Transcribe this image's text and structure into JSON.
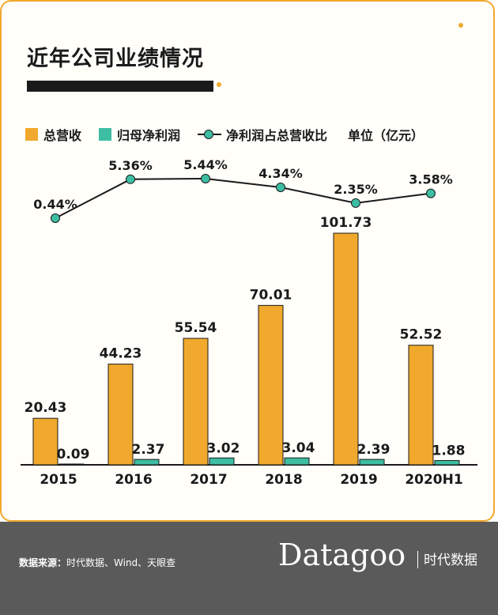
{
  "title": "近年公司业绩情况",
  "legend": {
    "revenue": "总营收",
    "net_profit": "归母净利润",
    "ratio": "净利润占总营收比",
    "unit": "单位（亿元）"
  },
  "colors": {
    "revenue": "#f0a92c",
    "net_profit": "#3dbda2",
    "line": "#1a1a1a",
    "footer": "#5a5a5a"
  },
  "footer": {
    "source_label": "数据来源：",
    "source_text": "时代数据、Wind、天眼查",
    "brand": "Datagoo",
    "brand_cn": "时代数据"
  },
  "chart_data": {
    "type": "bar",
    "categories": [
      "2015",
      "2016",
      "2017",
      "2018",
      "2019",
      "2020H1"
    ],
    "series": [
      {
        "name": "总营收",
        "type": "bar",
        "values": [
          20.43,
          44.23,
          55.54,
          70.01,
          101.73,
          52.52
        ],
        "labels": [
          "20.43",
          "44.23",
          "55.54",
          "70.01",
          "101.73",
          "52.52"
        ]
      },
      {
        "name": "归母净利润",
        "type": "bar",
        "values": [
          0.09,
          2.37,
          3.02,
          3.04,
          2.39,
          1.88
        ],
        "labels": [
          "0.09",
          "2.37",
          "3.02",
          "3.04",
          "2.39",
          "1.88"
        ]
      },
      {
        "name": "净利润占总营收比",
        "type": "line",
        "values": [
          0.44,
          5.36,
          5.44,
          4.34,
          2.35,
          3.58
        ],
        "labels": [
          "0.44%",
          "5.36%",
          "5.44%",
          "4.34%",
          "2.35%",
          "3.58%"
        ]
      }
    ],
    "ylim": [
      0,
      110
    ],
    "ratio_ylim": [
      0,
      5.44
    ],
    "grid": false,
    "legend_position": "top"
  }
}
